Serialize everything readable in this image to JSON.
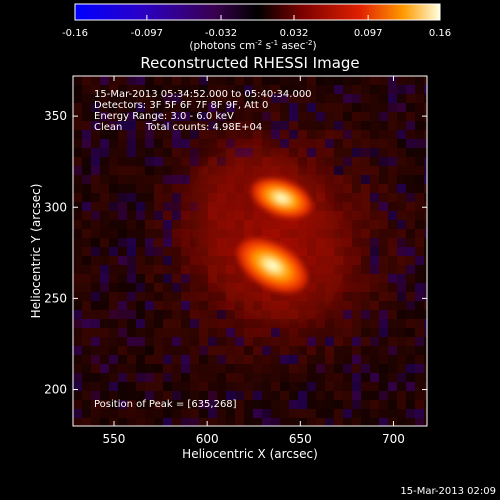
{
  "chart_data": {
    "type": "heatmap",
    "title": "Reconstructed RHESSI Image",
    "xlabel": "Heliocentric X (arcsec)",
    "ylabel": "Heliocentric Y (arcsec)",
    "xlim": [
      528,
      718
    ],
    "ylim": [
      180,
      372
    ],
    "xticks": [
      550,
      600,
      650,
      700
    ],
    "yticks": [
      200,
      250,
      300,
      350
    ],
    "xtick_labels": [
      "550",
      "600",
      "650",
      "700"
    ],
    "ytick_labels": [
      "200",
      "250",
      "300",
      "350"
    ],
    "colorbar": {
      "range": [
        -0.16,
        0.16
      ],
      "ticks": [
        -0.16,
        -0.097,
        -0.032,
        0.032,
        0.097,
        0.16
      ],
      "tick_labels": [
        "-0.16",
        "-0.097",
        "-0.032",
        "0.032",
        "0.097",
        "0.16"
      ],
      "unit_label_main": "(photons cm",
      "unit_exp1": "-2",
      "unit_mid1": " s",
      "unit_exp2": "-1",
      "unit_mid2": " asec",
      "unit_exp3": "-2",
      "unit_close": ")"
    },
    "annotations": {
      "line1": "15-Mar-2013 05:34:52.000 to 05:40:34.000",
      "line2": "Detectors: 3F 5F 6F 7F 8F 9F, Att 0",
      "line3": "Energy Range: 3.0 - 6.0 keV",
      "line4_a": "Clean",
      "line4_b": "Total counts: 4.98E+04",
      "peak": "Position of Peak = [635,268]"
    },
    "sources": [
      {
        "x": 635,
        "y": 268,
        "peak": 0.16
      },
      {
        "x": 640,
        "y": 305,
        "peak": 0.15
      }
    ],
    "timestamp": "15-Mar-2013 02:09"
  }
}
